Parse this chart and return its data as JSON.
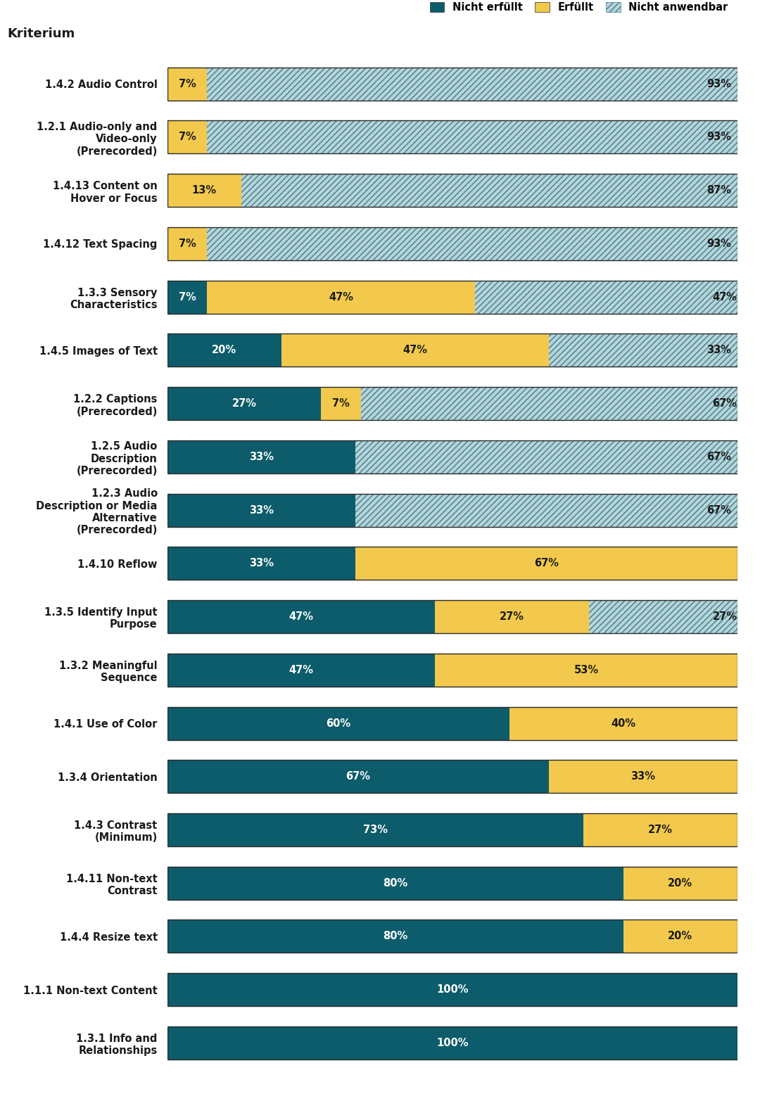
{
  "title": "Kriterium",
  "legend_labels": [
    "Nicht erfüllt",
    "Erfüllt",
    "Nicht anwendbar"
  ],
  "color_nicht_erfuellt": "#0d5c6b",
  "color_erfuellt": "#f2c94c",
  "color_nicht_anwendbar_bg": "#b8d4d8",
  "color_nicht_anwendbar_hatch": "#3d7f8f",
  "background_color": "#ffffff",
  "label_fontsize": 10.5,
  "bar_label_fontsize": 10.5,
  "categories": [
    "1.4.2 Audio Control",
    "1.2.1 Audio-only and\nVideo-only\n(Prerecorded)",
    "1.4.13 Content on\nHover or Focus",
    "1.4.12 Text Spacing",
    "1.3.3 Sensory\nCharacteristics",
    "1.4.5 Images of Text",
    "1.2.2 Captions\n(Prerecorded)",
    "1.2.5 Audio\nDescription\n(Prerecorded)",
    "1.2.3 Audio\nDescription or Media\nAlternative\n(Prerecorded)",
    "1.4.10 Reflow",
    "1.3.5 Identify Input\nPurpose",
    "1.3.2 Meaningful\nSequence",
    "1.4.1 Use of Color",
    "1.3.4 Orientation",
    "1.4.3 Contrast\n(Minimum)",
    "1.4.11 Non-text\nContrast",
    "1.4.4 Resize text",
    "1.1.1 Non-text Content",
    "1.3.1 Info and\nRelationships"
  ],
  "nicht_erfuellt": [
    0,
    0,
    0,
    0,
    7,
    20,
    27,
    33,
    33,
    33,
    47,
    47,
    60,
    67,
    73,
    80,
    80,
    100,
    100
  ],
  "erfuellt": [
    7,
    7,
    13,
    7,
    47,
    47,
    7,
    0,
    0,
    67,
    27,
    53,
    40,
    33,
    27,
    20,
    20,
    0,
    0
  ],
  "nicht_anwendbar": [
    93,
    93,
    87,
    93,
    47,
    33,
    67,
    67,
    67,
    0,
    27,
    0,
    0,
    0,
    0,
    0,
    0,
    0,
    0
  ]
}
